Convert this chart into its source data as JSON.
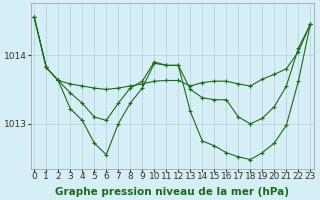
{
  "xlabel": "Graphe pression niveau de la mer (hPa)",
  "x_ticks": [
    0,
    1,
    2,
    3,
    4,
    5,
    6,
    7,
    8,
    9,
    10,
    11,
    12,
    13,
    14,
    15,
    16,
    17,
    18,
    19,
    20,
    21,
    22,
    23
  ],
  "ylim": [
    1012.35,
    1014.75
  ],
  "yticks": [
    1013,
    1014
  ],
  "bg_color": "#d6eef5",
  "grid_color": "#b0d0dc",
  "line_color": "#1a6b1a",
  "series": [
    [
      1014.55,
      1013.82,
      1013.63,
      1013.58,
      1013.55,
      1013.52,
      1013.5,
      1013.52,
      1013.55,
      1013.58,
      1013.62,
      1013.63,
      1013.63,
      1013.55,
      1013.6,
      1013.62,
      1013.62,
      1013.58,
      1013.55,
      1013.65,
      1013.72,
      1013.8,
      1014.05,
      1014.45
    ],
    [
      1014.55,
      1013.82,
      1013.63,
      1013.45,
      1013.3,
      1013.1,
      1013.05,
      1013.3,
      1013.52,
      1013.62,
      1013.9,
      1013.85,
      1013.85,
      1013.5,
      1013.38,
      1013.35,
      1013.35,
      1013.1,
      1013.0,
      1013.08,
      1013.25,
      1013.55,
      1014.1,
      1014.45
    ],
    [
      1014.55,
      1013.82,
      1013.63,
      1013.22,
      1013.05,
      1012.72,
      1012.55,
      1013.0,
      1013.3,
      1013.52,
      1013.88,
      1013.85,
      1013.85,
      1013.18,
      1012.75,
      1012.68,
      1012.58,
      1012.52,
      1012.48,
      1012.58,
      1012.72,
      1012.98,
      1013.62,
      1014.45
    ]
  ],
  "tick_fontsize": 6.5
}
